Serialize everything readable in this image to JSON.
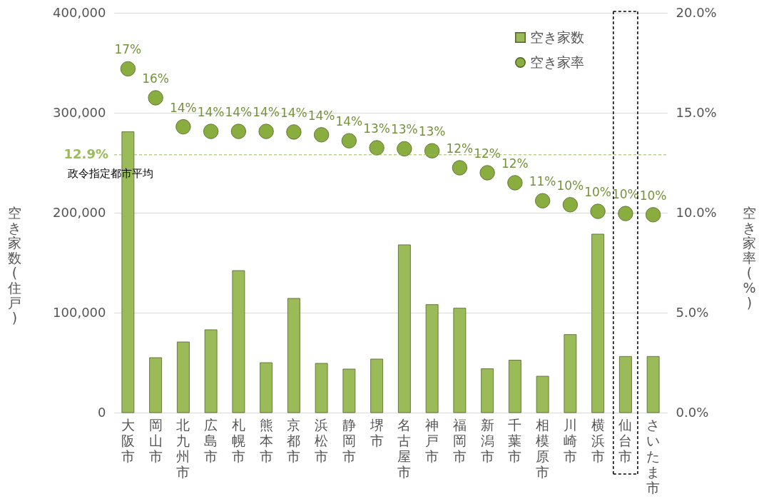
{
  "chart_data": {
    "type": "bar",
    "categories": [
      "大阪市",
      "岡山市",
      "北九州市",
      "広島市",
      "札幌市",
      "熊本市",
      "京都市",
      "浜松市",
      "静岡市",
      "堺市",
      "名古屋市",
      "神戸市",
      "福岡市",
      "新潟市",
      "千葉市",
      "相模原市",
      "川崎市",
      "横浜市",
      "仙台市",
      "さいたま市"
    ],
    "series": [
      {
        "name": "空き家数",
        "color": "#9bbb59",
        "values": [
          281000,
          55000,
          70700,
          82900,
          142100,
          50000,
          114300,
          49300,
          43600,
          53600,
          167900,
          108100,
          104500,
          43900,
          52500,
          36400,
          78100,
          178600,
          56200,
          56200
        ]
      },
      {
        "name": "空き家率",
        "type": "scatter",
        "axis": "y2",
        "color": "#8aad3f",
        "values": [
          17.2,
          15.75,
          14.3,
          14.07,
          14.07,
          14.07,
          14.04,
          13.9,
          13.6,
          13.25,
          13.2,
          13.1,
          12.25,
          12.0,
          11.5,
          10.6,
          10.4,
          10.07,
          9.96,
          9.9
        ],
        "value_labels": [
          "17%",
          "16%",
          "14%",
          "14%",
          "14%",
          "14%",
          "14%",
          "14%",
          "14%",
          "13%",
          "13%",
          "13%",
          "12%",
          "12%",
          "12%",
          "11%",
          "10%",
          "10%",
          "10%",
          "10%"
        ]
      }
    ],
    "ylabel": "空き家数(住戸)",
    "y2label": "空き家率(%)",
    "ylim": [
      0,
      400000
    ],
    "yticks": [
      0,
      {
        "value": 100000,
        "label": "100,000"
      },
      {
        "value": 200000,
        "label": "200,000"
      },
      {
        "value": 300000,
        "label": "300,000"
      },
      {
        "value": 400000,
        "label": "400,000"
      }
    ],
    "y2lim": [
      0,
      20
    ],
    "y2ticks": [
      {
        "value": 0,
        "label": "0.0%"
      },
      {
        "value": 5,
        "label": "5.0%"
      },
      {
        "value": 10,
        "label": "10.0%"
      },
      {
        "value": 15,
        "label": "15.0%"
      },
      {
        "value": 20,
        "label": "20.0%"
      }
    ],
    "ref_lines": [
      {
        "axis": "y2",
        "value": 12.9,
        "label": "12.9%",
        "color": "#9bbb59",
        "line_style": "dashed"
      }
    ],
    "annotations": [
      "政令指定都市平均"
    ],
    "grid": "y",
    "legend": "top right",
    "marker": "circle"
  }
}
